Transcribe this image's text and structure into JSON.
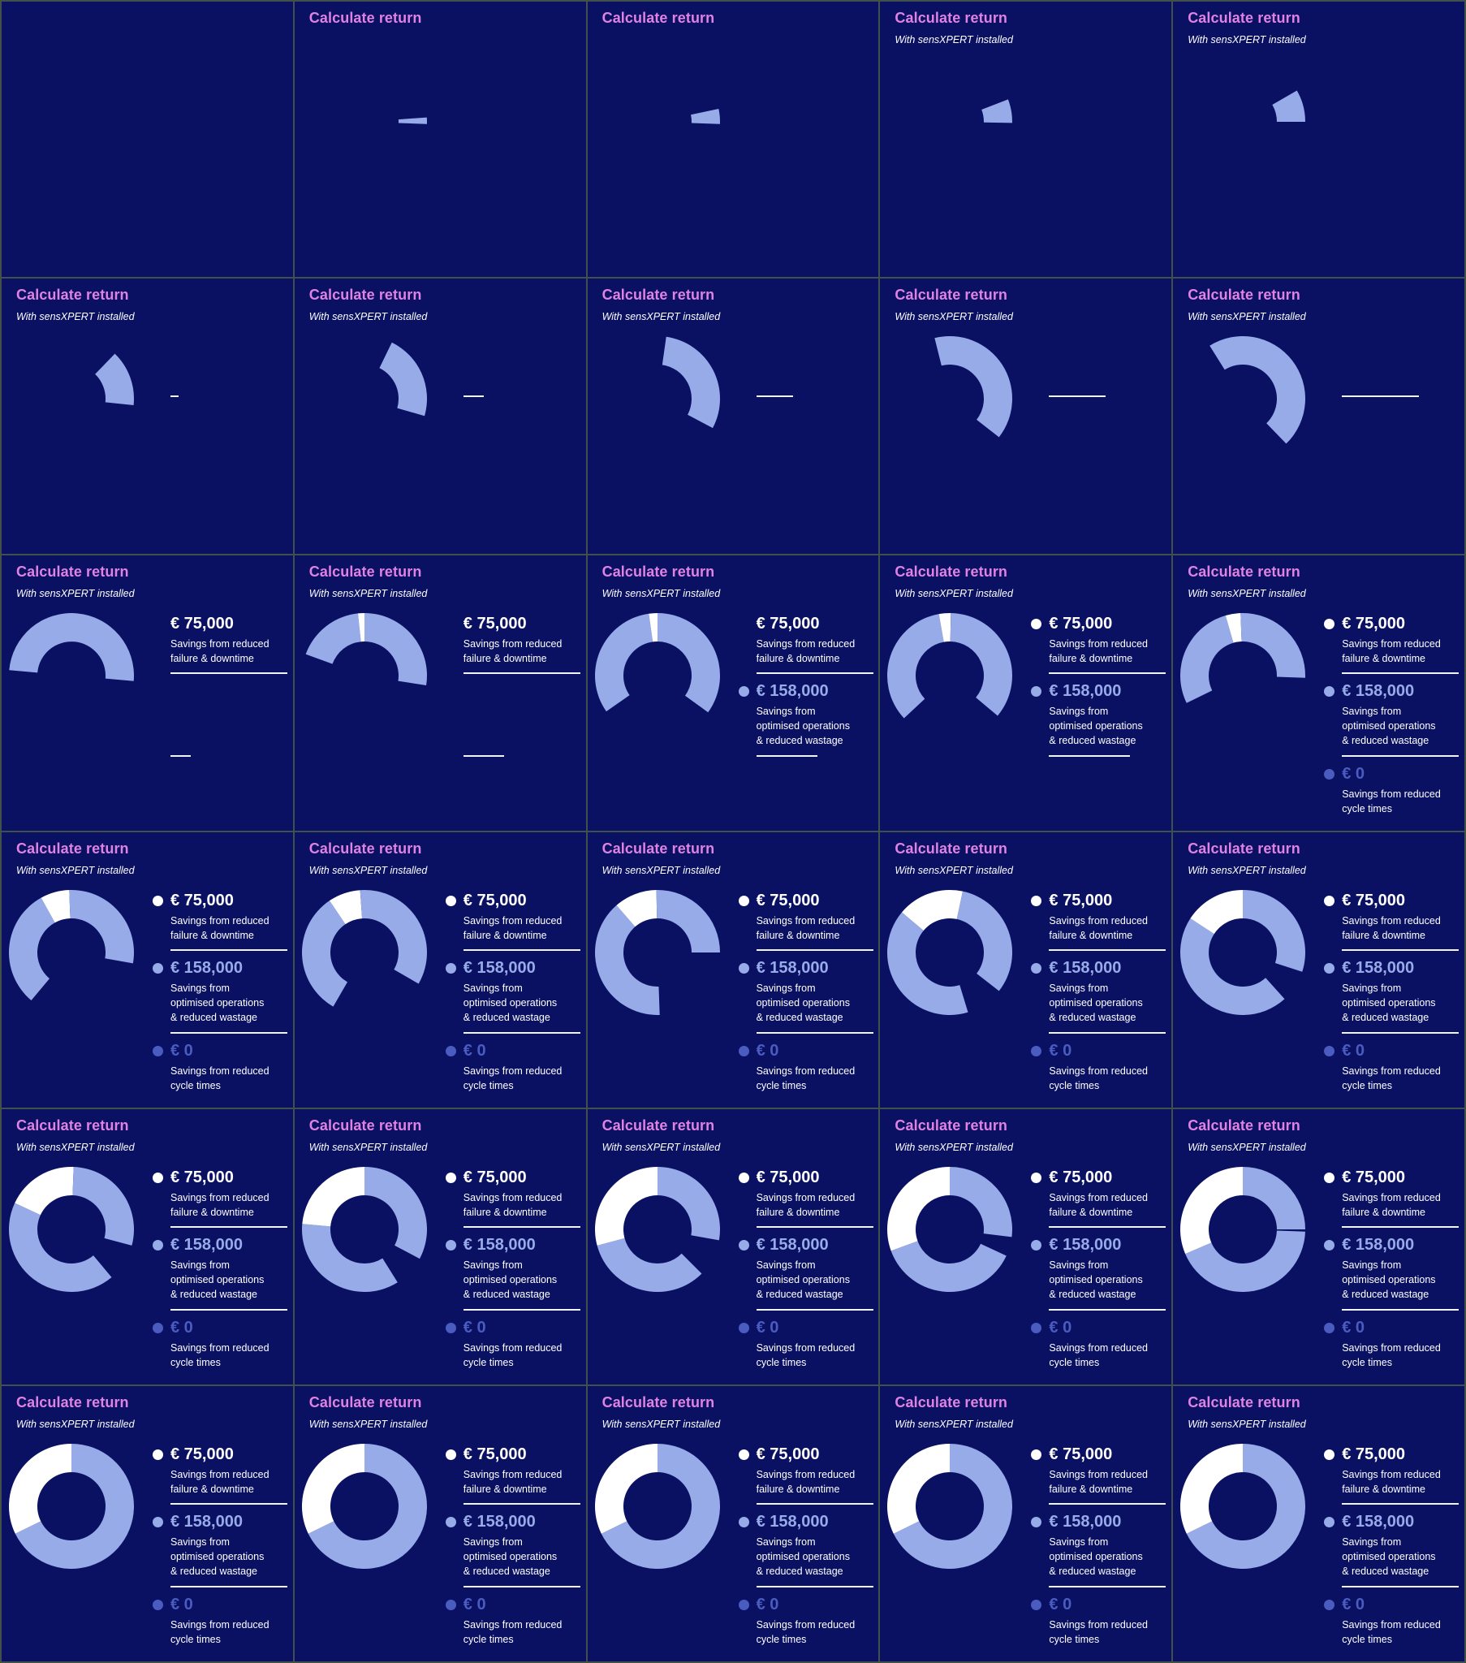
{
  "card": {
    "title": "Calculate return",
    "subtitle": "With sensXPERT installed",
    "items": [
      {
        "value": "€ 75,000",
        "desc": [
          "Savings from reduced",
          "failure & downtime"
        ],
        "color_name": "white"
      },
      {
        "value": "€ 158,000",
        "desc": [
          "Savings from",
          "optimised operations",
          "& reduced wastage"
        ],
        "color_name": "periwinkle"
      },
      {
        "value": "€ 0",
        "desc": [
          "Savings from reduced",
          "cycle times"
        ],
        "color_name": "muted-indigo"
      }
    ]
  },
  "colors": {
    "background": "#0a1163",
    "grid_line": "#41504a",
    "pink_title": "#df82e2",
    "p": "#98abe9",
    "w": "#ffffff",
    "muted_indigo": "#4a5cbf",
    "divider": "#f2f4fb"
  },
  "chart_data": {
    "type": "pie",
    "subtype": "donut",
    "title": "Calculate return",
    "subtitle": "With sensXPERT installed",
    "labels": [
      "Savings from reduced failure & downtime",
      "Savings from optimised operations & reduced wastage",
      "Savings from reduced cycle times"
    ],
    "values": [
      75000,
      158000,
      0
    ],
    "display_values": [
      "€ 75,000",
      "€ 158,000",
      "€ 0"
    ],
    "segment_colors": [
      "#ffffff",
      "#98abe9",
      "#4a5cbf"
    ],
    "legend_position": "right",
    "note": "Image is a 5x6 grid of 30 animation frames of the same donut chart sweeping in; donut outer radius 77px, inner radius 42px, angles measured clockwise from 12 o'clock"
  },
  "frames": [
    {
      "t": 0,
      "s": 0,
      "l1": 0,
      "d1": 0,
      "l2": 0,
      "d2": 0,
      "l3": 0,
      "seg": []
    },
    {
      "t": 1,
      "s": 0,
      "l1": 0,
      "d1": 0,
      "l2": 0,
      "d2": 0,
      "l3": 0,
      "seg": [
        [
          86,
          92,
          "p"
        ]
      ]
    },
    {
      "t": 1,
      "s": 0,
      "l1": 0,
      "d1": 0,
      "l2": 0,
      "d2": 0,
      "l3": 0,
      "seg": [
        [
          78,
          92,
          "p"
        ]
      ]
    },
    {
      "t": 1,
      "s": 1,
      "l1": 0,
      "d1": 0,
      "l2": 0,
      "d2": 0,
      "l3": 0,
      "seg": [
        [
          69,
          91,
          "p"
        ]
      ]
    },
    {
      "t": 1,
      "s": 1,
      "l1": 0,
      "d1": 0,
      "l2": 0,
      "d2": 0,
      "l3": 0,
      "seg": [
        [
          60,
          90,
          "p"
        ]
      ]
    },
    {
      "t": 1,
      "s": 1,
      "l1": 0,
      "d1": 10,
      "l2": 0,
      "d2": 0,
      "l3": 0,
      "seg": [
        [
          44,
          96,
          "p"
        ]
      ]
    },
    {
      "t": 1,
      "s": 1,
      "l1": 0,
      "d1": 25,
      "l2": 0,
      "d2": 0,
      "l3": 0,
      "seg": [
        [
          26,
          106,
          "p"
        ]
      ]
    },
    {
      "t": 1,
      "s": 1,
      "l1": 0,
      "d1": 45,
      "l2": 0,
      "d2": 0,
      "l3": 0,
      "seg": [
        [
          8,
          118,
          "p"
        ]
      ]
    },
    {
      "t": 1,
      "s": 1,
      "l1": 0,
      "d1": 70,
      "l2": 0,
      "d2": 0,
      "l3": 0,
      "seg": [
        [
          -14,
          128,
          "p"
        ]
      ]
    },
    {
      "t": 1,
      "s": 1,
      "l1": 0,
      "d1": 95,
      "l2": 0,
      "d2": 0,
      "l3": 0,
      "seg": [
        [
          -32,
          136,
          "p"
        ]
      ]
    },
    {
      "t": 1,
      "s": 1,
      "l1": 1,
      "d1": 144,
      "l2": 0,
      "d2": 25,
      "l3": 0,
      "seg": [
        [
          -85,
          95,
          "p"
        ]
      ]
    },
    {
      "t": 1,
      "s": 1,
      "l1": 1,
      "d1": 144,
      "l2": 0,
      "d2": 50,
      "l3": 0,
      "seg": [
        [
          -70,
          -6,
          "p"
        ],
        [
          -6,
          0,
          "w"
        ],
        [
          0,
          99,
          "p"
        ]
      ]
    },
    {
      "t": 1,
      "s": 1,
      "l1": 1,
      "d1": 144,
      "l2": 2,
      "d2": 75,
      "l3": 0,
      "seg": [
        [
          -125,
          -8,
          "p"
        ],
        [
          -8,
          0,
          "w"
        ],
        [
          0,
          126,
          "p"
        ]
      ]
    },
    {
      "t": 1,
      "s": 1,
      "l1": 2,
      "d1": 144,
      "l2": 2,
      "d2": 100,
      "l3": 0,
      "seg": [
        [
          -133,
          -10,
          "p"
        ],
        [
          -10,
          1,
          "w"
        ],
        [
          1,
          130,
          "p"
        ]
      ]
    },
    {
      "t": 1,
      "s": 1,
      "l1": 2,
      "d1": 144,
      "l2": 2,
      "d2": 144,
      "l3": 2,
      "seg": [
        [
          -116,
          -16,
          "p"
        ],
        [
          -16,
          -2,
          "w"
        ],
        [
          -2,
          92,
          "p"
        ]
      ]
    },
    {
      "t": 1,
      "s": 1,
      "l1": 2,
      "d1": 144,
      "l2": 2,
      "d2": 144,
      "l3": 2,
      "seg": [
        [
          -140,
          -29,
          "p"
        ],
        [
          -29,
          -2,
          "w"
        ],
        [
          -2,
          100,
          "p"
        ]
      ]
    },
    {
      "t": 1,
      "s": 1,
      "l1": 2,
      "d1": 144,
      "l2": 2,
      "d2": 144,
      "l3": 2,
      "seg": [
        [
          -150,
          -34,
          "p"
        ],
        [
          -34,
          -4,
          "w"
        ],
        [
          -4,
          120,
          "p"
        ]
      ]
    },
    {
      "t": 1,
      "s": 1,
      "l1": 2,
      "d1": 144,
      "l2": 2,
      "d2": 144,
      "l3": 2,
      "seg": [
        [
          -182,
          -41,
          "p"
        ],
        [
          -41,
          -1,
          "w"
        ],
        [
          -1,
          90,
          "p"
        ]
      ]
    },
    {
      "t": 1,
      "s": 1,
      "l1": 2,
      "d1": 144,
      "l2": 2,
      "d2": 144,
      "l3": 2,
      "seg": [
        [
          -197,
          -50,
          "p"
        ],
        [
          -50,
          12,
          "w"
        ],
        [
          12,
          128,
          "p"
        ]
      ]
    },
    {
      "t": 1,
      "s": 1,
      "l1": 2,
      "d1": 144,
      "l2": 2,
      "d2": 144,
      "l3": 2,
      "seg": [
        [
          -222,
          -57,
          "p"
        ],
        [
          -57,
          0,
          "w"
        ],
        [
          0,
          108,
          "p"
        ]
      ]
    },
    {
      "t": 1,
      "s": 1,
      "l1": 2,
      "d1": 144,
      "l2": 2,
      "d2": 144,
      "l3": 2,
      "seg": [
        [
          -220,
          -65,
          "p"
        ],
        [
          -65,
          2,
          "w"
        ],
        [
          2,
          105,
          "p"
        ]
      ]
    },
    {
      "t": 1,
      "s": 1,
      "l1": 2,
      "d1": 144,
      "l2": 2,
      "d2": 144,
      "l3": 2,
      "seg": [
        [
          -212,
          -85,
          "p"
        ],
        [
          -85,
          0,
          "w"
        ],
        [
          0,
          118,
          "p"
        ]
      ]
    },
    {
      "t": 1,
      "s": 1,
      "l1": 2,
      "d1": 144,
      "l2": 2,
      "d2": 144,
      "l3": 2,
      "seg": [
        [
          -225,
          -105,
          "p"
        ],
        [
          -105,
          0,
          "w"
        ],
        [
          0,
          100,
          "p"
        ]
      ]
    },
    {
      "t": 1,
      "s": 1,
      "l1": 2,
      "d1": 144,
      "l2": 2,
      "d2": 144,
      "l3": 2,
      "seg": [
        [
          -245,
          -110,
          "p"
        ],
        [
          -110,
          0,
          "w"
        ],
        [
          0,
          97,
          "p"
        ]
      ]
    },
    {
      "t": 1,
      "s": 1,
      "l1": 2,
      "d1": 144,
      "l2": 2,
      "d2": 144,
      "l3": 2,
      "seg": [
        [
          -268,
          -113,
          "p"
        ],
        [
          -113,
          0,
          "w"
        ],
        [
          0,
          90,
          "p"
        ]
      ]
    },
    {
      "t": 1,
      "s": 1,
      "l1": 2,
      "d1": 144,
      "l2": 2,
      "d2": 144,
      "l3": 2,
      "seg": [
        [
          0,
          244,
          "p"
        ],
        [
          244,
          360,
          "w"
        ]
      ]
    },
    {
      "t": 1,
      "s": 1,
      "l1": 2,
      "d1": 144,
      "l2": 2,
      "d2": 144,
      "l3": 2,
      "seg": [
        [
          0,
          244,
          "p"
        ],
        [
          244,
          360,
          "w"
        ]
      ]
    },
    {
      "t": 1,
      "s": 1,
      "l1": 2,
      "d1": 144,
      "l2": 2,
      "d2": 144,
      "l3": 2,
      "seg": [
        [
          0,
          244,
          "p"
        ],
        [
          244,
          360,
          "w"
        ]
      ]
    },
    {
      "t": 1,
      "s": 1,
      "l1": 2,
      "d1": 144,
      "l2": 2,
      "d2": 144,
      "l3": 2,
      "seg": [
        [
          0,
          244,
          "p"
        ],
        [
          244,
          360,
          "w"
        ]
      ]
    },
    {
      "t": 1,
      "s": 1,
      "l1": 2,
      "d1": 144,
      "l2": 2,
      "d2": 144,
      "l3": 2,
      "seg": [
        [
          0,
          244,
          "p"
        ],
        [
          244,
          360,
          "w"
        ]
      ]
    }
  ]
}
